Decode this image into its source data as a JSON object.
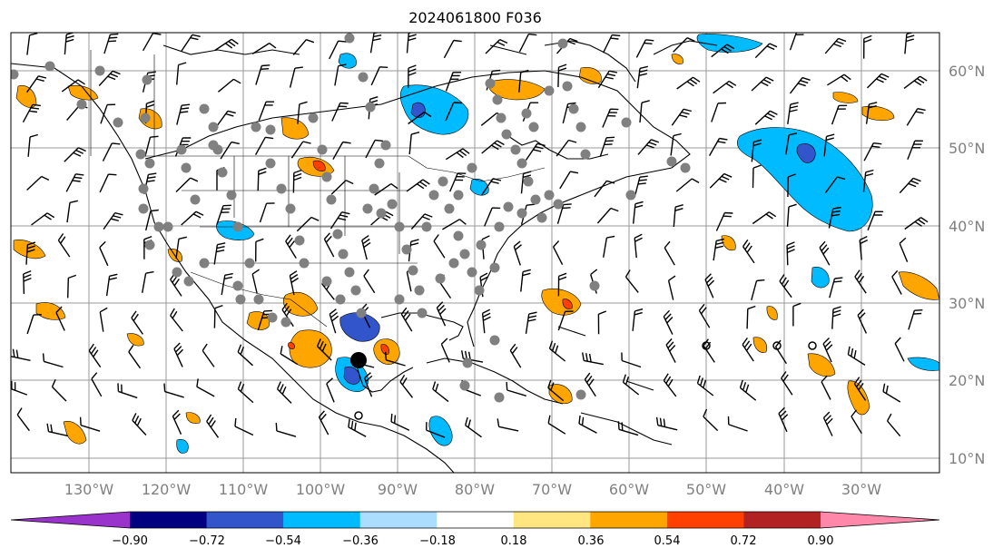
{
  "title": "2024061800 F036",
  "map": {
    "lat_labels": [
      "60°N",
      "50°N",
      "40°N",
      "30°N",
      "20°N",
      "10°N"
    ],
    "lon_labels": [
      "130°W",
      "120°W",
      "110°W",
      "100°W",
      "90°W",
      "80°W",
      "70°W",
      "60°W",
      "50°W",
      "40°W",
      "30°W"
    ],
    "grid_color": "#9a9a9a",
    "station_dot_color": "#808080",
    "land_outline_color": "#000000"
  },
  "colorbar": {
    "tick_labels": [
      "−0.90",
      "−0.72",
      "−0.54",
      "−0.36",
      "−0.18",
      "0.18",
      "0.36",
      "0.54",
      "0.72",
      "0.90"
    ],
    "colors": [
      "#9933cc",
      "#000080",
      "#3355cc",
      "#00bbff",
      "#aaddff",
      "#ffffff",
      "#ffe680",
      "#ffa500",
      "#ff4000",
      "#b22222",
      "#ff88aa"
    ]
  }
}
